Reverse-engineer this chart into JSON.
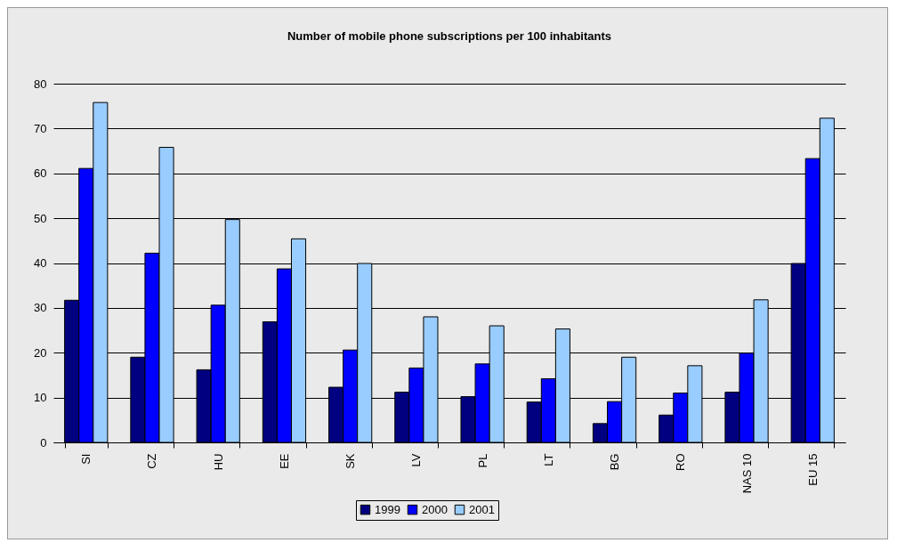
{
  "chart_data": {
    "type": "bar",
    "title": "Number of mobile phone subscriptions per 100 inhabitants",
    "categories": [
      "SI",
      "CZ",
      "HU",
      "EE",
      "SK",
      "LV",
      "PL",
      "LT",
      "BG",
      "RO",
      "NAS 10",
      "EU 15"
    ],
    "series": [
      {
        "name": "1999",
        "color": "#000080",
        "values": [
          31.7,
          19.0,
          16.2,
          26.9,
          12.3,
          11.2,
          10.2,
          9.0,
          4.2,
          6.1,
          11.2,
          39.9
        ]
      },
      {
        "name": "2000",
        "color": "#0000ff",
        "values": [
          61.1,
          42.2,
          30.6,
          38.7,
          20.6,
          16.6,
          17.5,
          14.2,
          9.1,
          11.0,
          19.9,
          63.3
        ]
      },
      {
        "name": "2001",
        "color": "#99ccff",
        "values": [
          75.8,
          65.8,
          49.7,
          45.4,
          39.9,
          28.0,
          26.0,
          25.3,
          19.0,
          17.1,
          31.8,
          72.3
        ]
      }
    ],
    "ylim": [
      0,
      80
    ],
    "yticks": [
      0,
      10,
      20,
      30,
      40,
      50,
      60,
      70,
      80
    ],
    "grid": "y",
    "legend": "bottom"
  }
}
